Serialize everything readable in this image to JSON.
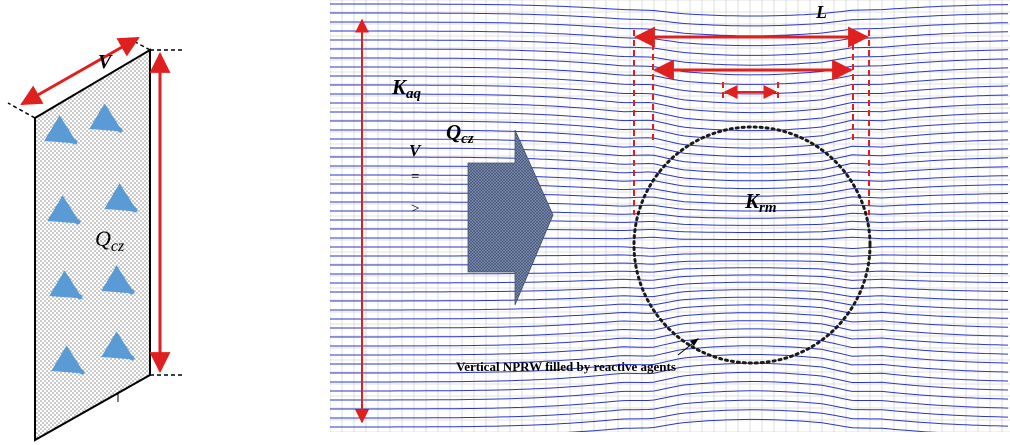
{
  "left_panel": {
    "width_label": "V",
    "flow_label": "Q",
    "flow_label_sub": "cz",
    "arrow_color": "#5b9bd5",
    "dimension_color": "#e0201f"
  },
  "right_panel": {
    "aquifer_label": "K",
    "aquifer_label_sub": "aq",
    "barrier_label": "K",
    "barrier_label_sub": "rm",
    "flow_label": "Q",
    "flow_label_sub": "cz",
    "length_label": "L",
    "velocity_label": "V",
    "velocity_eq": "=",
    "velocity_gt": ">",
    "caption": "Vertical NPRW filled by reactive agents",
    "streamline_color": "#2b35c9",
    "grid_color": "#c8c8c8",
    "dimension_color": "#e0201f",
    "barrier_color": "#1a1a1a"
  }
}
